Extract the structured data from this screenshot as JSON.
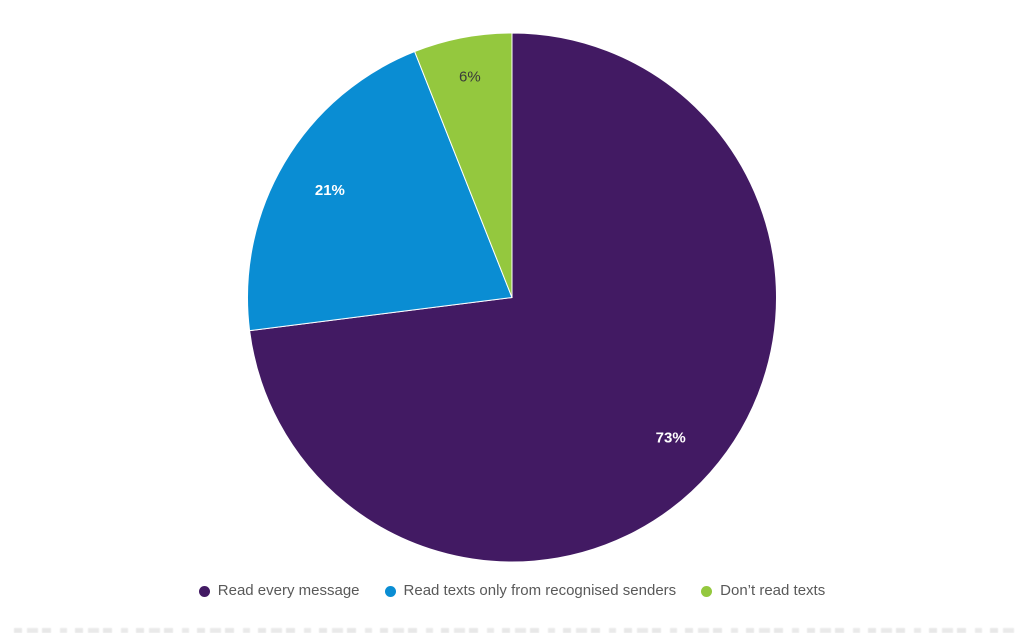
{
  "page": {
    "background": "#ffffff"
  },
  "chart_data": {
    "type": "pie",
    "title": "",
    "start_angle_deg": 0,
    "direction": "clockwise",
    "grid": false,
    "legend_position": "bottom",
    "total": 100,
    "slices": [
      {
        "label": "Read every message",
        "value": 73,
        "value_label": "73%",
        "color": "#421a63",
        "value_label_color": "#ffffff"
      },
      {
        "label": "Read texts only from recognised senders",
        "value": 21,
        "value_label": "21%",
        "color": "#0a8dd3",
        "value_label_color": "#ffffff"
      },
      {
        "label": "Don’t read texts",
        "value": 6,
        "value_label": "6%",
        "color": "#94c83e",
        "value_label_color": "#3a3a3a"
      }
    ],
    "label_radius_fraction": [
      0.8,
      0.8,
      0.85
    ],
    "legend_text_color": "#595959"
  }
}
